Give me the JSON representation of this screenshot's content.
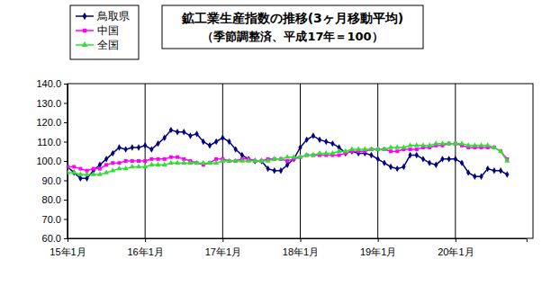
{
  "chart_data": {
    "type": "line",
    "title": "鉱工業生産指数の推移(3ヶ月移動平均)",
    "subtitle": "（季節調整済、平成17年＝100）",
    "categories": [
      "15年1月",
      null,
      null,
      null,
      null,
      null,
      null,
      null,
      null,
      null,
      null,
      null,
      "16年1月",
      null,
      null,
      null,
      null,
      null,
      null,
      null,
      null,
      null,
      null,
      null,
      "17年1月",
      null,
      null,
      null,
      null,
      null,
      null,
      null,
      null,
      null,
      null,
      null,
      "18年1月",
      null,
      null,
      null,
      null,
      null,
      null,
      null,
      null,
      null,
      null,
      null,
      "19年1月",
      null,
      null,
      null,
      null,
      null,
      null,
      null,
      null,
      null,
      null,
      null,
      "20年1月",
      null,
      null,
      null,
      null,
      null,
      null,
      null,
      null,
      null,
      null,
      null
    ],
    "series": [
      {
        "name": "鳥取県",
        "color": "#000080",
        "marker": "diamond",
        "values": [
          97,
          94,
          91,
          91,
          95,
          98,
          101,
          104,
          107,
          106,
          107,
          107,
          108,
          106,
          109,
          112,
          116,
          115,
          115,
          113,
          114,
          110,
          108,
          110,
          112,
          110,
          106,
          103,
          101,
          100,
          100,
          96,
          95,
          95,
          98,
          101,
          107,
          111,
          113,
          111,
          110,
          109,
          107,
          104,
          105,
          104,
          104,
          103,
          101,
          99,
          97,
          96,
          97,
          103,
          103,
          101,
          99,
          98,
          101,
          101,
          101,
          99,
          94,
          92,
          92,
          96,
          95,
          95,
          93,
          null,
          null,
          null
        ]
      },
      {
        "name": "中国",
        "color": "#ff00ff",
        "marker": "square",
        "values": [
          97,
          97,
          96,
          95,
          96,
          96,
          98,
          99,
          99,
          100,
          100,
          100,
          100,
          101,
          101,
          101,
          102,
          102,
          101,
          100,
          99,
          98,
          99,
          101,
          101,
          100,
          100,
          101,
          101,
          100,
          100,
          101,
          101,
          101,
          100,
          101,
          102,
          103,
          103,
          103,
          103,
          103,
          103,
          104,
          105,
          105,
          105,
          106,
          106,
          106,
          105,
          105,
          106,
          106,
          106,
          107,
          107,
          108,
          108,
          109,
          109,
          108,
          107,
          107,
          107,
          107,
          107,
          105,
          101,
          null,
          null,
          null
        ]
      },
      {
        "name": "全国",
        "color": "#33dd33",
        "marker": "triangle",
        "values": [
          94,
          94,
          93,
          93,
          93,
          93,
          94,
          95,
          96,
          96,
          97,
          97,
          97,
          98,
          98,
          98,
          99,
          99,
          99,
          99,
          99,
          99,
          99,
          99,
          100,
          100,
          100,
          100,
          100,
          100,
          100,
          100,
          101,
          101,
          102,
          102,
          102,
          103,
          103,
          104,
          104,
          104,
          105,
          105,
          106,
          106,
          106,
          106,
          106,
          106,
          107,
          107,
          107,
          108,
          108,
          108,
          108,
          109,
          109,
          109,
          109,
          109,
          108,
          108,
          108,
          108,
          107,
          105,
          100,
          null,
          null,
          null
        ]
      }
    ],
    "ylim": [
      60,
      140
    ],
    "yticks": [
      {
        "value": 60,
        "label": "60.0"
      },
      {
        "value": 70,
        "label": "70.0"
      },
      {
        "value": 80,
        "label": "80.0"
      },
      {
        "value": 90,
        "label": "90.0"
      },
      {
        "value": 100,
        "label": "100.0"
      },
      {
        "value": 110,
        "label": "110.0"
      },
      {
        "value": 120,
        "label": "120.0"
      },
      {
        "value": 130,
        "label": "130.0"
      },
      {
        "value": 140,
        "label": "140.0"
      }
    ],
    "grid": true,
    "legend": "upper left"
  }
}
